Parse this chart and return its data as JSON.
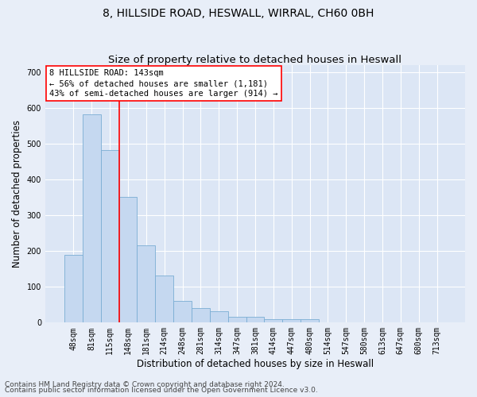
{
  "title": "8, HILLSIDE ROAD, HESWALL, WIRRAL, CH60 0BH",
  "subtitle": "Size of property relative to detached houses in Heswall",
  "xlabel": "Distribution of detached houses by size in Heswall",
  "ylabel": "Number of detached properties",
  "categories": [
    "48sqm",
    "81sqm",
    "115sqm",
    "148sqm",
    "181sqm",
    "214sqm",
    "248sqm",
    "281sqm",
    "314sqm",
    "347sqm",
    "381sqm",
    "414sqm",
    "447sqm",
    "480sqm",
    "514sqm",
    "547sqm",
    "580sqm",
    "613sqm",
    "647sqm",
    "680sqm",
    "713sqm"
  ],
  "values": [
    190,
    583,
    483,
    352,
    215,
    131,
    61,
    40,
    31,
    16,
    16,
    9,
    10,
    10,
    0,
    0,
    0,
    0,
    0,
    0,
    0
  ],
  "bar_color": "#c5d8f0",
  "bar_edge_color": "#7aadd4",
  "vline_x": 2.5,
  "vline_color": "red",
  "annotation_text": "8 HILLSIDE ROAD: 143sqm\n← 56% of detached houses are smaller (1,181)\n43% of semi-detached houses are larger (914) →",
  "ylim": [
    0,
    720
  ],
  "yticks": [
    0,
    100,
    200,
    300,
    400,
    500,
    600,
    700
  ],
  "fig_background_color": "#e8eef8",
  "plot_background": "#dce6f5",
  "grid_color": "#ffffff",
  "footer_line1": "Contains HM Land Registry data © Crown copyright and database right 2024.",
  "footer_line2": "Contains public sector information licensed under the Open Government Licence v3.0.",
  "title_fontsize": 10,
  "subtitle_fontsize": 9.5,
  "xlabel_fontsize": 8.5,
  "ylabel_fontsize": 8.5,
  "tick_fontsize": 7,
  "annotation_fontsize": 7.5,
  "footer_fontsize": 6.5
}
